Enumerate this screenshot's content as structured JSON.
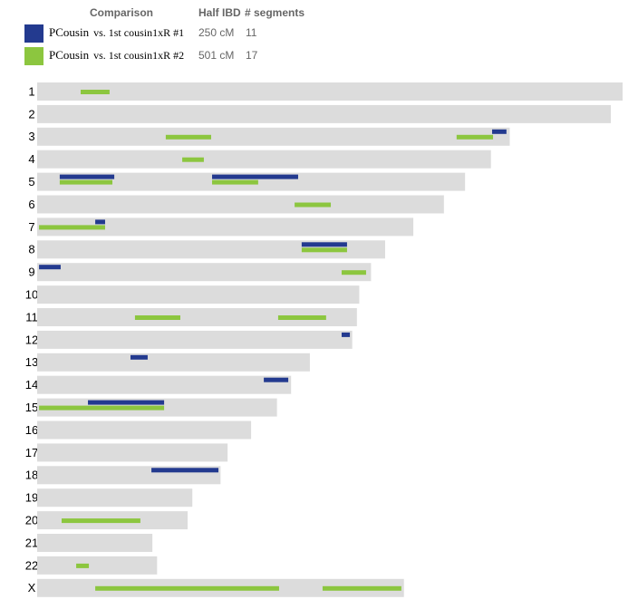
{
  "header": {
    "columns": [
      "Comparison",
      "Half IBD",
      "# segments"
    ]
  },
  "comparisons": [
    {
      "name": "PCousin",
      "relation": "vs. 1st cousin1xR #1",
      "color": "#233a8f",
      "half_ibd": "250 cM",
      "segment_count": 11
    },
    {
      "name": "PCousin",
      "relation": "vs. 1st cousin1xR #2",
      "color": "#8cc63f",
      "half_ibd": "501 cM",
      "segment_count": 17
    }
  ],
  "chromosomes": [
    {
      "label": "1",
      "length": 249,
      "matches": [
        [],
        [
          [
            18.5,
            30.8
          ]
        ]
      ]
    },
    {
      "label": "2",
      "length": 244,
      "matches": [
        [],
        []
      ]
    },
    {
      "label": "3",
      "length": 201,
      "matches": [
        [
          [
            193.5,
            199.6
          ]
        ],
        [
          [
            54.7,
            74.0
          ],
          [
            178.4,
            193.9
          ]
        ]
      ]
    },
    {
      "label": "4",
      "length": 193,
      "matches": [
        [],
        [
          [
            61.7,
            70.9
          ]
        ]
      ]
    },
    {
      "label": "5",
      "length": 182,
      "matches": [
        [
          [
            9.6,
            32.8
          ],
          [
            74.4,
            111.0
          ]
        ],
        [
          [
            9.6,
            32.0
          ],
          [
            74.4,
            94.0
          ]
        ]
      ]
    },
    {
      "label": "6",
      "length": 173,
      "matches": [
        [],
        [
          [
            109.5,
            124.9
          ]
        ]
      ]
    },
    {
      "label": "7",
      "length": 160,
      "matches": [
        [
          [
            24.7,
            28.9
          ]
        ],
        [
          [
            0.8,
            28.9
          ]
        ]
      ]
    },
    {
      "label": "8",
      "length": 148,
      "matches": [
        [
          [
            112.5,
            131.8
          ]
        ],
        [
          [
            112.5,
            131.8
          ]
        ]
      ]
    },
    {
      "label": "9",
      "length": 142,
      "matches": [
        [
          [
            0.8,
            10.0
          ]
        ],
        [
          [
            129.5,
            139.9
          ]
        ]
      ]
    },
    {
      "label": "10",
      "length": 137,
      "matches": [
        [],
        []
      ]
    },
    {
      "label": "11",
      "length": 136,
      "matches": [
        [],
        [
          [
            41.6,
            60.9
          ],
          [
            102.5,
            122.9
          ]
        ]
      ]
    },
    {
      "label": "12",
      "length": 134,
      "matches": [
        [
          [
            129.5,
            133.0
          ]
        ],
        []
      ]
    },
    {
      "label": "13",
      "length": 116,
      "matches": [
        [
          [
            39.7,
            47.0
          ]
        ],
        []
      ]
    },
    {
      "label": "14",
      "length": 108,
      "matches": [
        [
          [
            96.4,
            106.8
          ]
        ],
        []
      ]
    },
    {
      "label": "15",
      "length": 102,
      "matches": [
        [
          [
            21.6,
            54.0
          ]
        ],
        [
          [
            0.8,
            54.0
          ]
        ]
      ]
    },
    {
      "label": "16",
      "length": 91,
      "matches": [
        [],
        []
      ]
    },
    {
      "label": "17",
      "length": 81,
      "matches": [
        [],
        []
      ]
    },
    {
      "label": "18",
      "length": 78,
      "matches": [
        [
          [
            48.6,
            77.1
          ]
        ],
        []
      ]
    },
    {
      "label": "19",
      "length": 66,
      "matches": [
        [],
        []
      ]
    },
    {
      "label": "20",
      "length": 64,
      "matches": [
        [],
        [
          [
            10.4,
            43.9
          ]
        ]
      ]
    },
    {
      "label": "21",
      "length": 49,
      "matches": [
        [],
        []
      ]
    },
    {
      "label": "22",
      "length": 51,
      "matches": [
        [],
        [
          [
            16.6,
            22.0
          ]
        ]
      ]
    },
    {
      "label": "X",
      "length": 156,
      "matches": [
        [],
        [
          [
            24.7,
            102.9
          ],
          [
            121.4,
            154.9
          ]
        ]
      ]
    }
  ]
}
